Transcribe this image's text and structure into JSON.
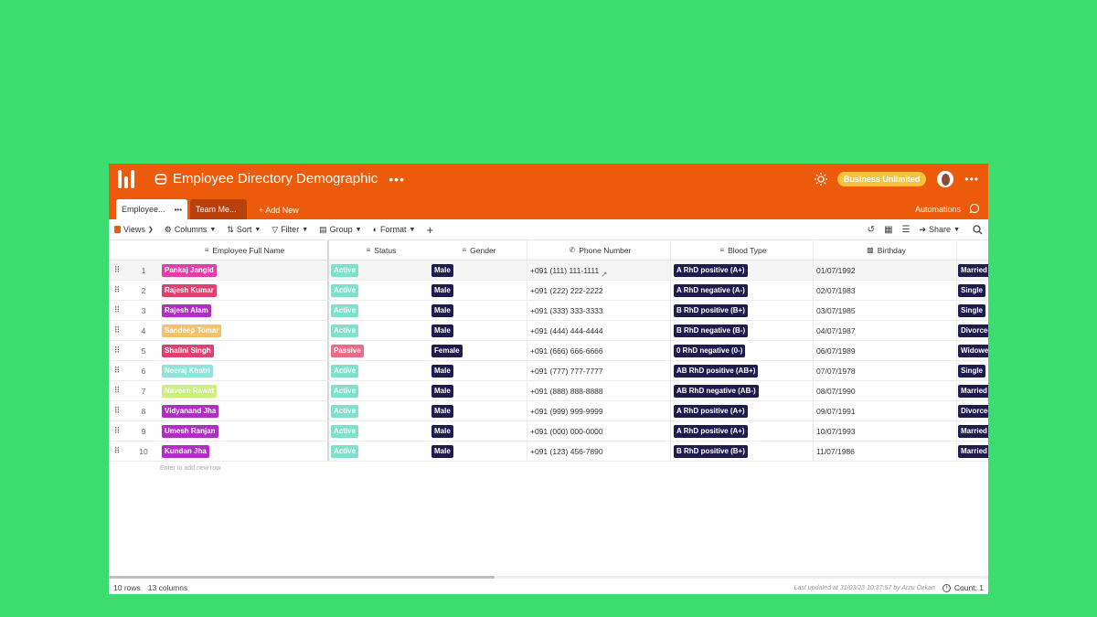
{
  "header": {
    "title": "Employee Directory Demographic",
    "more": "•••",
    "plan_badge": "Business Unlimited",
    "menu": "•••"
  },
  "tabs": [
    {
      "label": "Employee...",
      "more": "•••"
    },
    {
      "label": "Team Me..."
    }
  ],
  "add_new": "+ Add New",
  "automations": "Automations",
  "toolbar": {
    "views": "Views",
    "columns": "Columns",
    "sort": "Sort",
    "filter": "Filter",
    "group": "Group",
    "format": "Format",
    "add": "+",
    "share": "Share"
  },
  "columns": {
    "name": "Employee Full Name",
    "status": "Status",
    "gender": "Gender",
    "phone": "Phone Number",
    "blood": "Blood Type",
    "birthday": "Birthday"
  },
  "colors": {
    "header": "#ec5b0b",
    "badge": "#f8c33a",
    "active": "#7fe0cc",
    "passive": "#ea6d86",
    "dark_pill": "#1f1b4d",
    "background": "#3ddc6f"
  },
  "rows": [
    {
      "num": "1",
      "name": "Pankaj Jangid",
      "name_color": "#e33ea8",
      "status": "Active",
      "status_color": "#7fe0cc",
      "gender": "Male",
      "phone": "+091 (111) 111-1111",
      "blood": "A RhD positive (A+)",
      "birthday": "01/07/1992",
      "marital": "Married"
    },
    {
      "num": "2",
      "name": "Rajesh Kumar",
      "name_color": "#e04070",
      "status": "Active",
      "status_color": "#7fe0cc",
      "gender": "Male",
      "phone": "+091 (222) 222-2222",
      "blood": "A RhD negative (A-)",
      "birthday": "02/07/1983",
      "marital": "Single"
    },
    {
      "num": "3",
      "name": "Rajesh Alam",
      "name_color": "#b02ec4",
      "status": "Active",
      "status_color": "#7fe0cc",
      "gender": "Male",
      "phone": "+091 (333) 333-3333",
      "blood": "B RhD positive (B+)",
      "birthday": "03/07/1985",
      "marital": "Single"
    },
    {
      "num": "4",
      "name": "Sandeep Tomar",
      "name_color": "#f4c26a",
      "status": "Active",
      "status_color": "#7fe0cc",
      "gender": "Male",
      "phone": "+091 (444) 444-4444",
      "blood": "B RhD negative (B-)",
      "birthday": "04/07/1987",
      "marital": "Divorced"
    },
    {
      "num": "5",
      "name": "Shalini Singh",
      "name_color": "#e04070",
      "status": "Passive",
      "status_color": "#ea6d86",
      "gender": "Female",
      "phone": "+091 (666) 666-6666",
      "blood": "0 RhD negative (0-)",
      "birthday": "06/07/1989",
      "marital": "Widowed"
    },
    {
      "num": "6",
      "name": "Neeraj Khatri",
      "name_color": "#8fe3d8",
      "status": "Active",
      "status_color": "#7fe0cc",
      "gender": "Male",
      "phone": "+091 (777) 777-7777",
      "blood": "AB RhD positive (AB+)",
      "birthday": "07/07/1978",
      "marital": "Single"
    },
    {
      "num": "7",
      "name": "Naveen Rawat",
      "name_color": "#c8f07a",
      "status": "Active",
      "status_color": "#7fe0cc",
      "gender": "Male",
      "phone": "+091 (888) 888-8888",
      "blood": "AB RhD negative (AB-)",
      "birthday": "08/07/1990",
      "marital": "Married"
    },
    {
      "num": "8",
      "name": "Vidyanand Jha",
      "name_color": "#b02ec4",
      "status": "Active",
      "status_color": "#7fe0cc",
      "gender": "Male",
      "phone": "+091 (999) 999-9999",
      "blood": "A RhD positive (A+)",
      "birthday": "09/07/1991",
      "marital": "Divorced"
    },
    {
      "num": "9",
      "name": "Umesh Ranjan",
      "name_color": "#b02ec4",
      "status": "Active",
      "status_color": "#7fe0cc",
      "gender": "Male",
      "phone": "+091 (000) 000-0000",
      "blood": "A RhD positive (A+)",
      "birthday": "10/07/1993",
      "marital": "Married"
    },
    {
      "num": "10",
      "name": "Kundan Jha",
      "name_color": "#b02ec4",
      "status": "Active",
      "status_color": "#7fe0cc",
      "gender": "Male",
      "phone": "+091 (123) 456-7890",
      "blood": "B RhD positive (B+)",
      "birthday": "11/07/1986",
      "marital": "Married"
    }
  ],
  "add_row_hint": "Enter to add new row.",
  "footer": {
    "rows": "10 rows",
    "columns": "13 columns",
    "updated": "Last updated at 31/03/23 10:37:57 by Arzu Özkan",
    "count": "Count: 1"
  }
}
